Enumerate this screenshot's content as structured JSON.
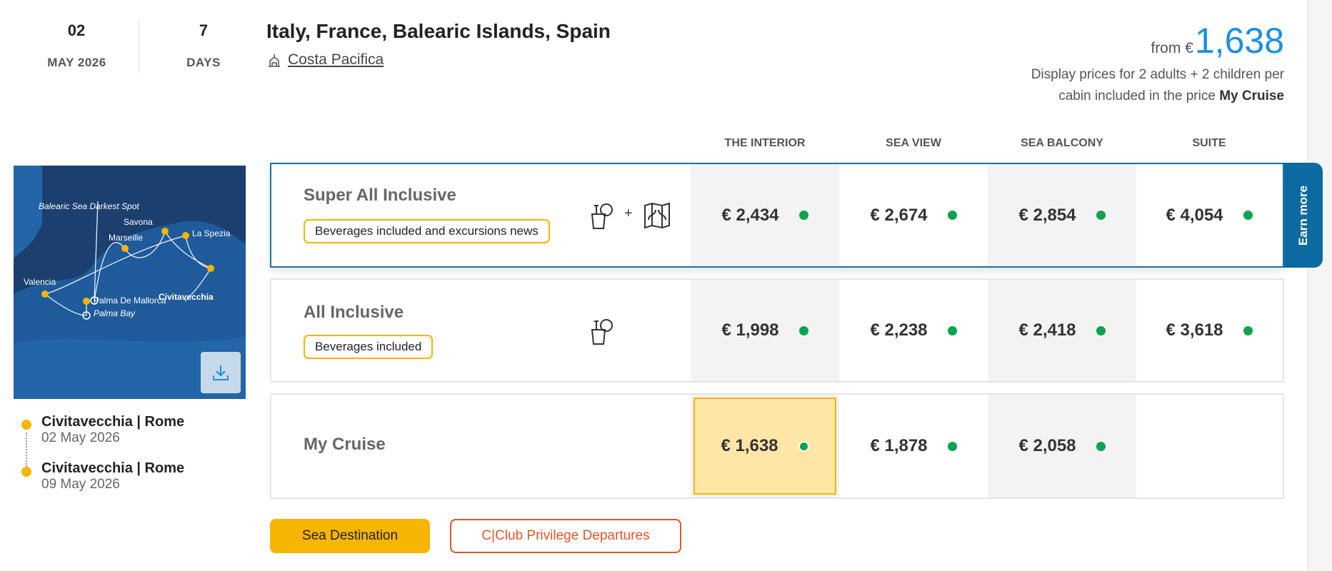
{
  "departure": {
    "day": "02",
    "month_year": "MAY 2026"
  },
  "duration": {
    "value": "7",
    "unit": "DAYS"
  },
  "title": "Italy, France, Balearic Islands, Spain",
  "ship": {
    "icon": "ship-icon",
    "name": "Costa Pacifica"
  },
  "price": {
    "from_label": "from €",
    "value": "1,638",
    "desc": "Display prices for 2 adults + 2 children per cabin included in the price",
    "desc_bold": "My Cruise",
    "color": "#1a8fe3"
  },
  "columns": [
    "THE INTERIOR",
    "SEA VIEW",
    "SEA BALCONY",
    "SUITE"
  ],
  "rows": [
    {
      "name": "Super All Inclusive",
      "badge": "Beverages included and excursions news",
      "icons": [
        "drink-icon",
        "plus",
        "map-icon"
      ],
      "plus": "+",
      "prices": [
        "€ 2,434",
        "€ 2,674",
        "€ 2,854",
        "€ 4,054"
      ]
    },
    {
      "name": "All Inclusive",
      "badge": "Beverages included",
      "icons": [
        "drink-icon"
      ],
      "prices": [
        "€ 1,998",
        "€ 2,238",
        "€ 2,418",
        "€ 3,618"
      ]
    },
    {
      "name": "My Cruise",
      "prices": [
        "€ 1,638",
        "€ 1,878",
        "€ 2,058"
      ]
    }
  ],
  "availability_color": "#0aa34f",
  "earn_more": "Earn more",
  "map": {
    "labels": [
      "Balearic Sea Darkest Spot",
      "Savona",
      "Marseille",
      "La Spezia",
      "Civitavecchia",
      "Valencia",
      "Palma De Mallorca",
      "Palma Bay"
    ],
    "download_icon": "download-icon"
  },
  "itinerary": [
    {
      "port": "Civitavecchia | Rome",
      "date": "02 May 2026"
    },
    {
      "port": "Civitavecchia | Rome",
      "date": "09 May 2026"
    }
  ],
  "buttons": {
    "sea_destination": "Sea Destination",
    "cclub": "C|Club Privilege Departures"
  }
}
